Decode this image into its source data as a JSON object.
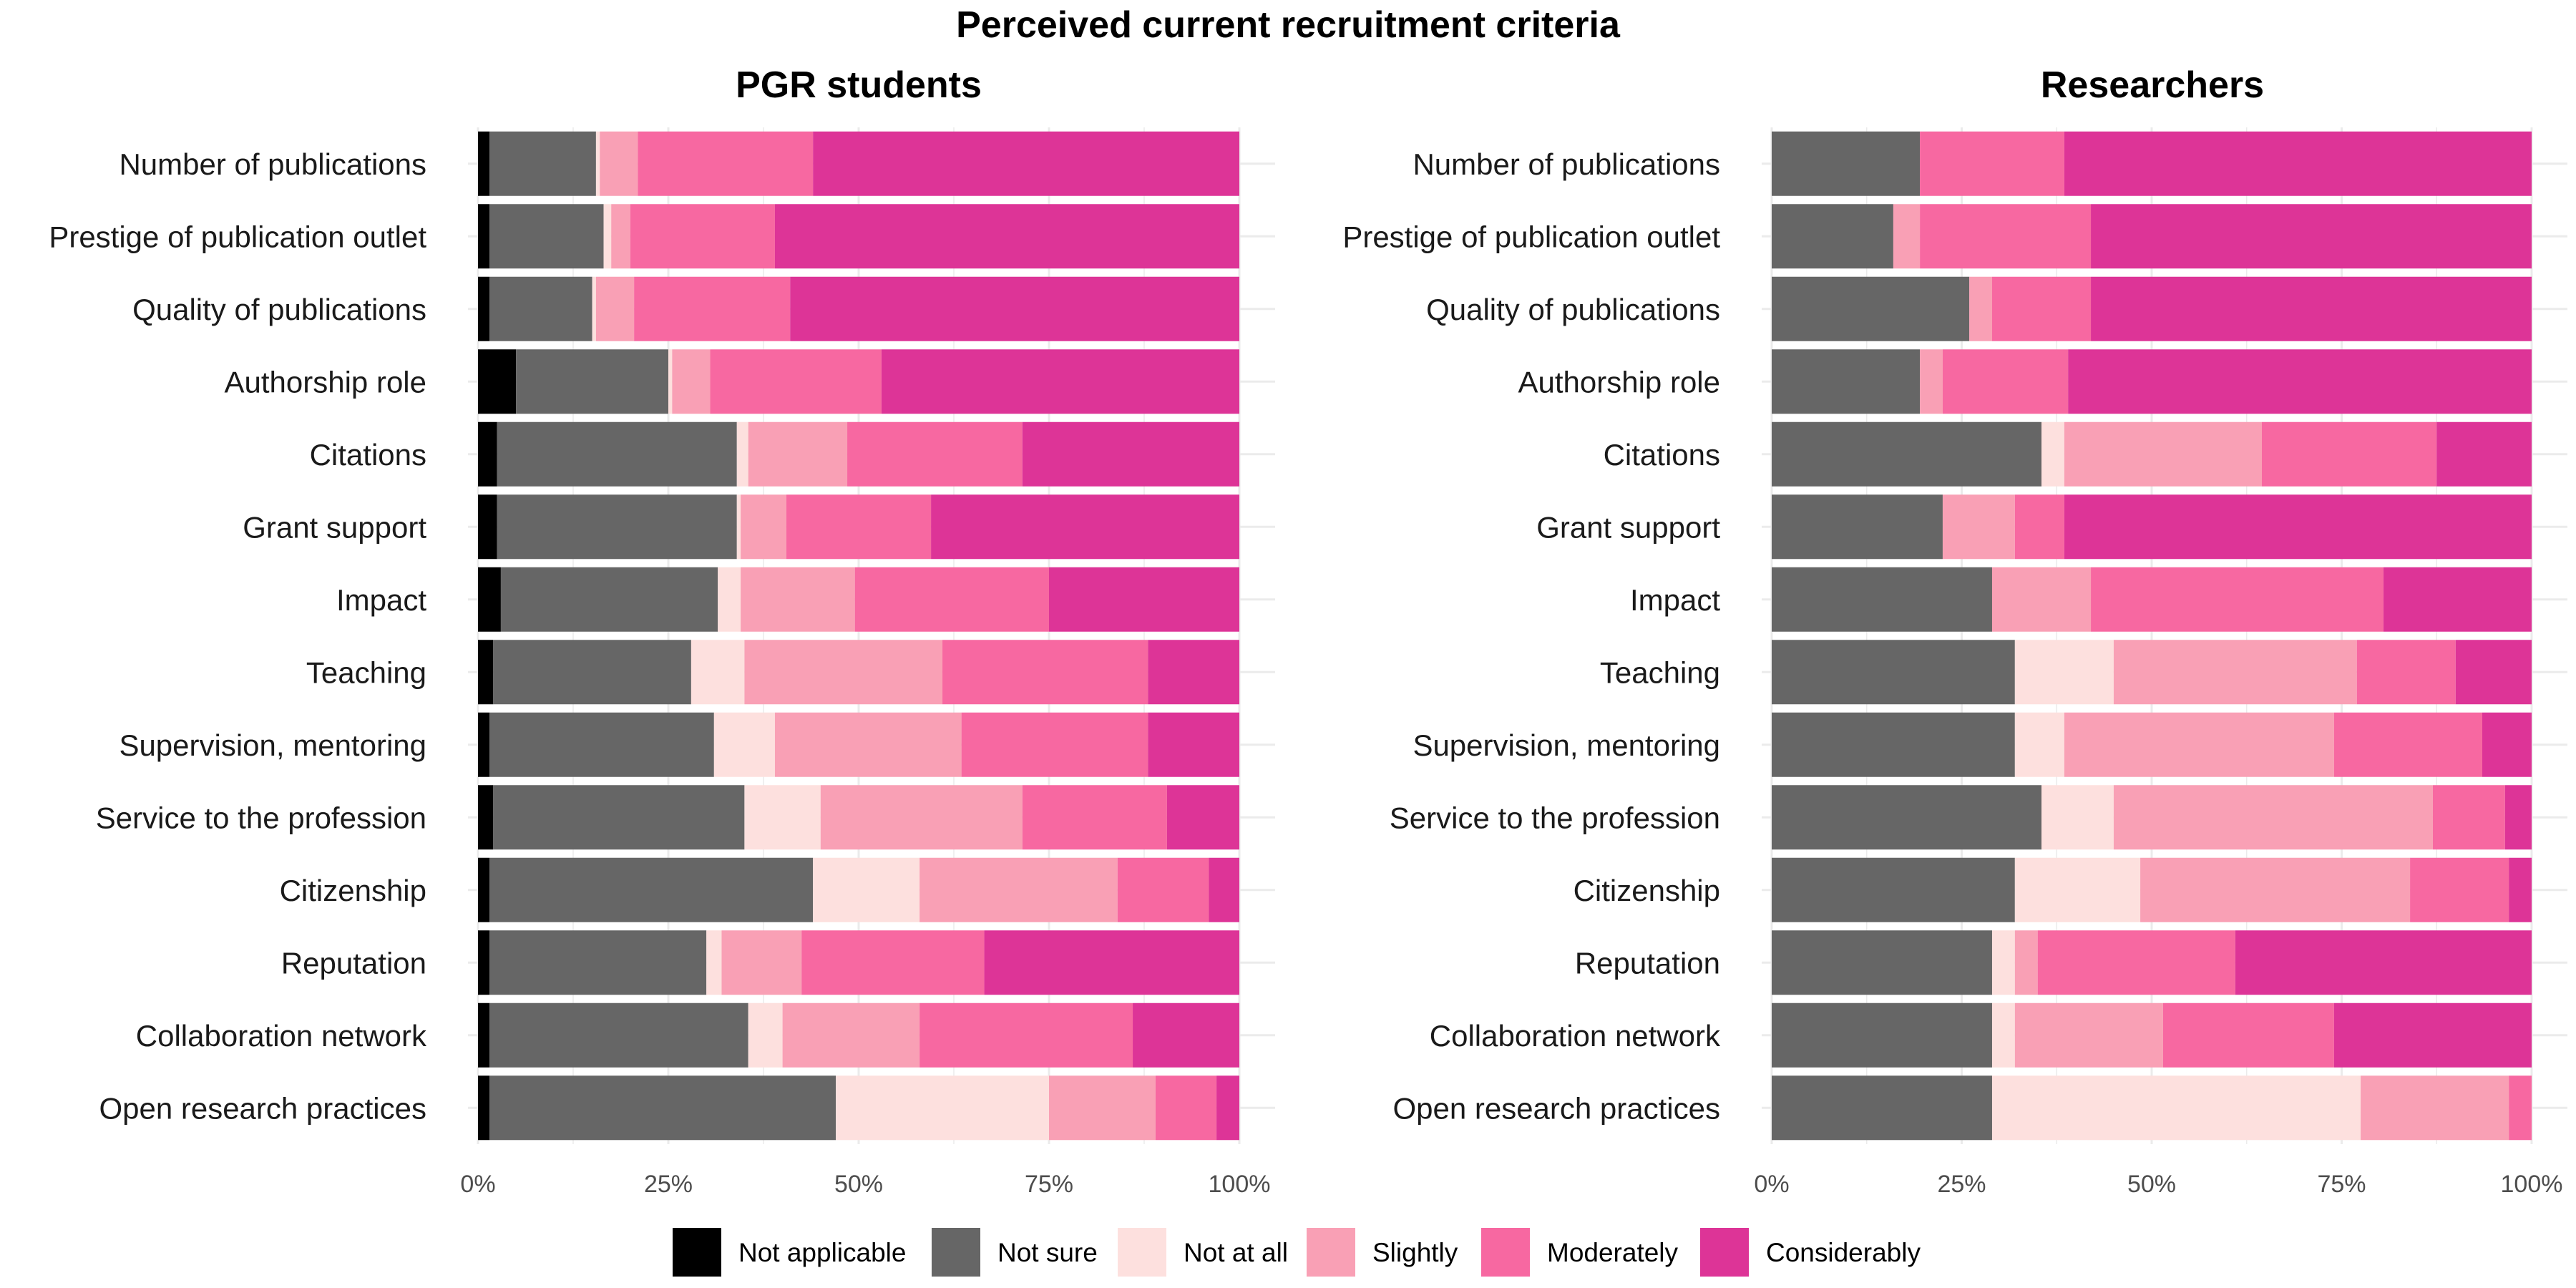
{
  "chart_data": {
    "type": "bar",
    "orientation": "horizontal",
    "stacked": "percent",
    "title": "Perceived current recruitment criteria",
    "categories": [
      "Number of publications",
      "Prestige of publication outlet",
      "Quality of publications",
      "Authorship role",
      "Citations",
      "Grant support",
      "Impact",
      "Teaching",
      "Supervision, mentoring",
      "Service to the profession",
      "Citizenship",
      "Reputation",
      "Collaboration network",
      "Open research practices"
    ],
    "series_names": [
      "Not applicable",
      "Not sure",
      "Not at all",
      "Slightly",
      "Moderately",
      "Considerably"
    ],
    "colors": [
      "#000000",
      "#666666",
      "#fde0de",
      "#f9a0b5",
      "#f768a1",
      "#dd3497"
    ],
    "x_ticks": [
      "0%",
      "25%",
      "50%",
      "75%",
      "100%"
    ],
    "xlim": [
      0,
      100
    ],
    "legend": "bottom",
    "grid": true,
    "panels": [
      {
        "title": "PGR students",
        "values": [
          [
            1.5,
            14.0,
            0.5,
            5.0,
            23.0,
            56.0
          ],
          [
            1.5,
            15.0,
            1.0,
            2.5,
            19.0,
            61.0
          ],
          [
            1.5,
            13.5,
            0.5,
            5.0,
            20.5,
            59.0
          ],
          [
            5.0,
            20.0,
            0.5,
            5.0,
            22.5,
            47.0
          ],
          [
            2.5,
            31.5,
            1.5,
            13.0,
            23.0,
            28.5
          ],
          [
            2.5,
            31.5,
            0.5,
            6.0,
            19.0,
            40.5
          ],
          [
            3.0,
            28.5,
            3.0,
            15.0,
            25.5,
            25.0
          ],
          [
            2.0,
            26.0,
            7.0,
            26.0,
            27.0,
            12.0
          ],
          [
            1.5,
            29.5,
            8.0,
            24.5,
            24.5,
            12.0
          ],
          [
            2.0,
            33.0,
            10.0,
            26.5,
            19.0,
            9.5
          ],
          [
            1.5,
            42.5,
            14.0,
            26.0,
            12.0,
            4.0
          ],
          [
            1.5,
            28.5,
            2.0,
            10.5,
            24.0,
            33.5
          ],
          [
            1.5,
            34.0,
            4.5,
            18.0,
            28.0,
            14.0
          ],
          [
            1.5,
            45.5,
            28.0,
            14.0,
            8.0,
            3.0
          ]
        ]
      },
      {
        "title": "Researchers",
        "values": [
          [
            0,
            19.5,
            0,
            0,
            19.0,
            61.5
          ],
          [
            0,
            16.0,
            0,
            3.5,
            22.5,
            58.0
          ],
          [
            0,
            26.0,
            0,
            3.0,
            13.0,
            58.0
          ],
          [
            0,
            19.5,
            0,
            3.0,
            16.5,
            61.0
          ],
          [
            0,
            35.5,
            3.0,
            26.0,
            23.0,
            12.5
          ],
          [
            0,
            22.5,
            0,
            9.5,
            6.5,
            61.5
          ],
          [
            0,
            29.0,
            0,
            13.0,
            38.5,
            19.5
          ],
          [
            0,
            32.0,
            13.0,
            32.0,
            13.0,
            10.0
          ],
          [
            0,
            32.0,
            6.5,
            35.5,
            19.5,
            6.5
          ],
          [
            0,
            35.5,
            9.5,
            42.0,
            9.5,
            3.5
          ],
          [
            0,
            32.0,
            16.5,
            35.5,
            13.0,
            3.0
          ],
          [
            0,
            29.0,
            3.0,
            3.0,
            26.0,
            39.0
          ],
          [
            0,
            29.0,
            3.0,
            19.5,
            22.5,
            26.0
          ],
          [
            0,
            29.0,
            48.5,
            19.5,
            3.0,
            0
          ]
        ]
      }
    ]
  }
}
